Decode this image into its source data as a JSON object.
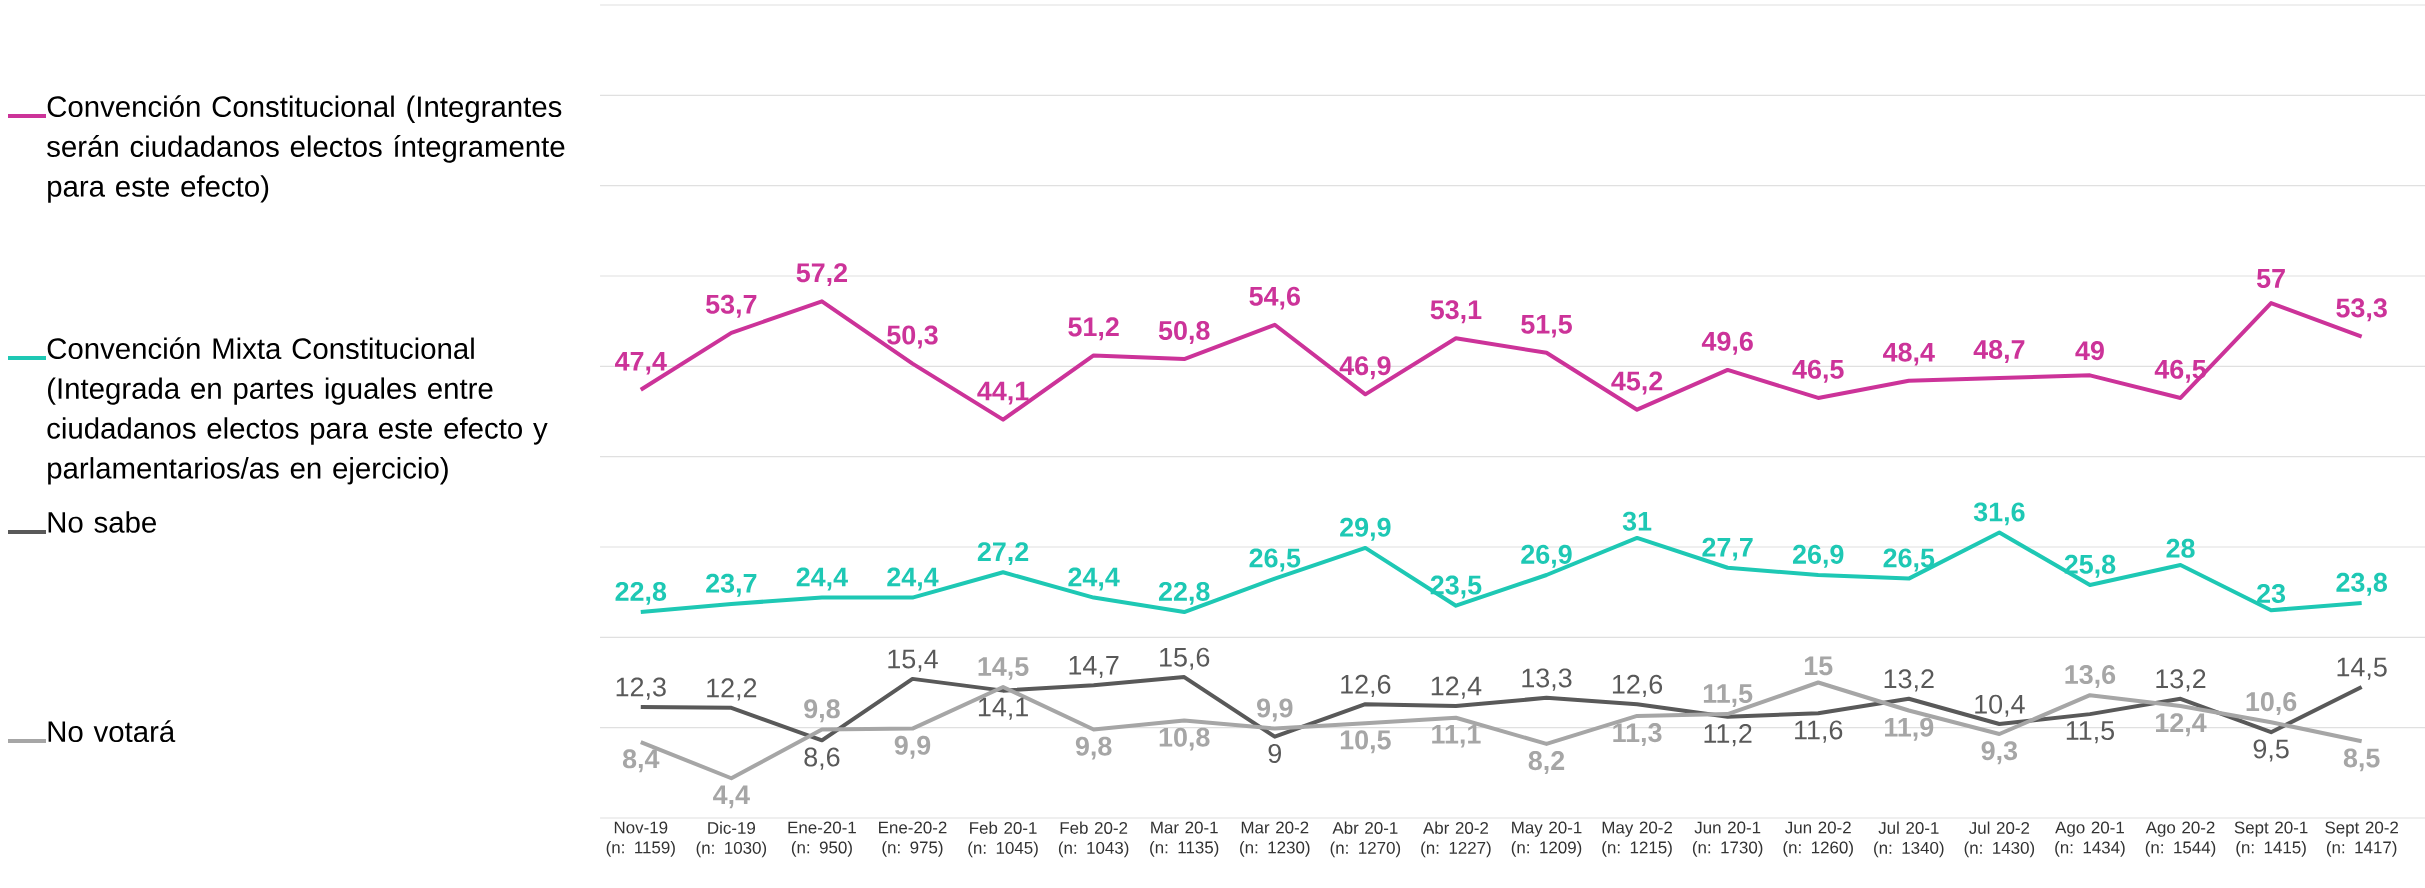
{
  "chart_data": {
    "type": "line",
    "categories": [
      "Nov-19 (n: 1159)",
      "Dic-19 (n: 1030)",
      "Ene-20-1 (n: 950)",
      "Ene-20-2 (n: 975)",
      "Feb 20-1 (n: 1045)",
      "Feb 20-2 (n: 1043)",
      "Mar 20-1 (n: 1135)",
      "Mar 20-2 (n: 1230)",
      "Abr 20-1 (n: 1270)",
      "Abr 20-2 (n: 1227)",
      "May 20-1 (n: 1209)",
      "May 20-2 (n: 1215)",
      "Jun 20-1 (n: 1730)",
      "Jun 20-2 (n: 1260)",
      "Jul 20-1 (n: 1340)",
      "Jul 20-2 (n: 1430)",
      "Ago 20-1 (n: 1434)",
      "Ago 20-2 (n: 1544)",
      "Sept 20-1 (n: 1415)",
      "Sept 20-2 (n: 1417)"
    ],
    "series": [
      {
        "name": "Convención Constitucional (Integrantes serán ciudadanos electos íntegramente para este efecto)",
        "color": "#cc3399",
        "values": [
          47.4,
          53.7,
          57.2,
          50.3,
          44.1,
          51.2,
          50.8,
          54.6,
          46.9,
          53.1,
          51.5,
          45.2,
          49.6,
          46.5,
          48.4,
          48.7,
          49,
          46.5,
          57,
          53.3
        ],
        "value_labels": [
          "47,4",
          "53,7",
          "57,2",
          "50,3",
          "44,1",
          "51,2",
          "50,8",
          "54,6",
          "46,9",
          "53,1",
          "51,5",
          "45,2",
          "49,6",
          "46,5",
          "48,4",
          "48,7",
          "49",
          "46,5",
          "57",
          "53,3"
        ]
      },
      {
        "name": "Convención Mixta Constitucional (Integrada en partes iguales entre ciudadanos electos para este efecto y parlamentarios/as en ejercicio)",
        "color": "#1ec8b4",
        "values": [
          22.8,
          23.7,
          24.4,
          24.4,
          27.2,
          24.4,
          22.8,
          26.5,
          29.9,
          23.5,
          26.9,
          31,
          27.7,
          26.9,
          26.5,
          31.6,
          25.8,
          28,
          23,
          23.8
        ],
        "value_labels": [
          "22,8",
          "23,7",
          "24,4",
          "24,4",
          "27,2",
          "24,4",
          "22,8",
          "26,5",
          "29,9",
          "23,5",
          "26,9",
          "31",
          "27,7",
          "26,9",
          "26,5",
          "31,6",
          "25,8",
          "28",
          "23",
          "23,8"
        ]
      },
      {
        "name": "No sabe",
        "color": "#595959",
        "values": [
          12.3,
          12.2,
          8.6,
          15.4,
          14.1,
          14.7,
          15.6,
          9,
          12.6,
          12.4,
          13.3,
          12.6,
          11.2,
          11.6,
          13.2,
          10.4,
          11.5,
          13.2,
          9.5,
          14.5
        ],
        "value_labels": [
          "12,3",
          "12,2",
          "8,6",
          "15,4",
          "14,1",
          "14,7",
          "15,6",
          "9",
          "12,6",
          "12,4",
          "13,3",
          "12,6",
          "11,2",
          "11,6",
          "13,2",
          "10,4",
          "11,5",
          "13,2",
          "9,5",
          "14,5"
        ]
      },
      {
        "name": "No votará",
        "color": "#a6a6a6",
        "values": [
          8.4,
          4.4,
          9.8,
          9.9,
          14.5,
          9.8,
          10.8,
          9.9,
          10.5,
          11.1,
          8.2,
          11.3,
          11.5,
          15,
          11.9,
          9.3,
          13.6,
          12.4,
          10.6,
          8.5
        ],
        "value_labels": [
          "8,4",
          "4,4",
          "9,8",
          "9,9",
          "14,5",
          "9,8",
          "10,8",
          "9,9",
          "10,5",
          "11,1",
          "8,2",
          "11,3",
          "11,5",
          "15",
          "11,9",
          "9,3",
          "13,6",
          "12,4",
          "10,6",
          "8,5"
        ]
      }
    ],
    "ylim": [
      0,
      90
    ],
    "yticks": [
      {
        "value": 0,
        "label": null
      },
      {
        "value": 10,
        "label": null
      },
      {
        "value": 20,
        "label": null
      },
      {
        "value": 30,
        "label": null
      },
      {
        "value": 40,
        "label": null
      },
      {
        "value": 50,
        "label": null
      },
      {
        "value": 60,
        "label": null
      },
      {
        "value": 70,
        "label": null
      },
      {
        "value": 80,
        "label": null
      },
      {
        "value": 90,
        "label": null
      }
    ],
    "grid": "y",
    "legend": "left",
    "tick_labels": "x",
    "marker": "none",
    "line_style": "solid"
  }
}
